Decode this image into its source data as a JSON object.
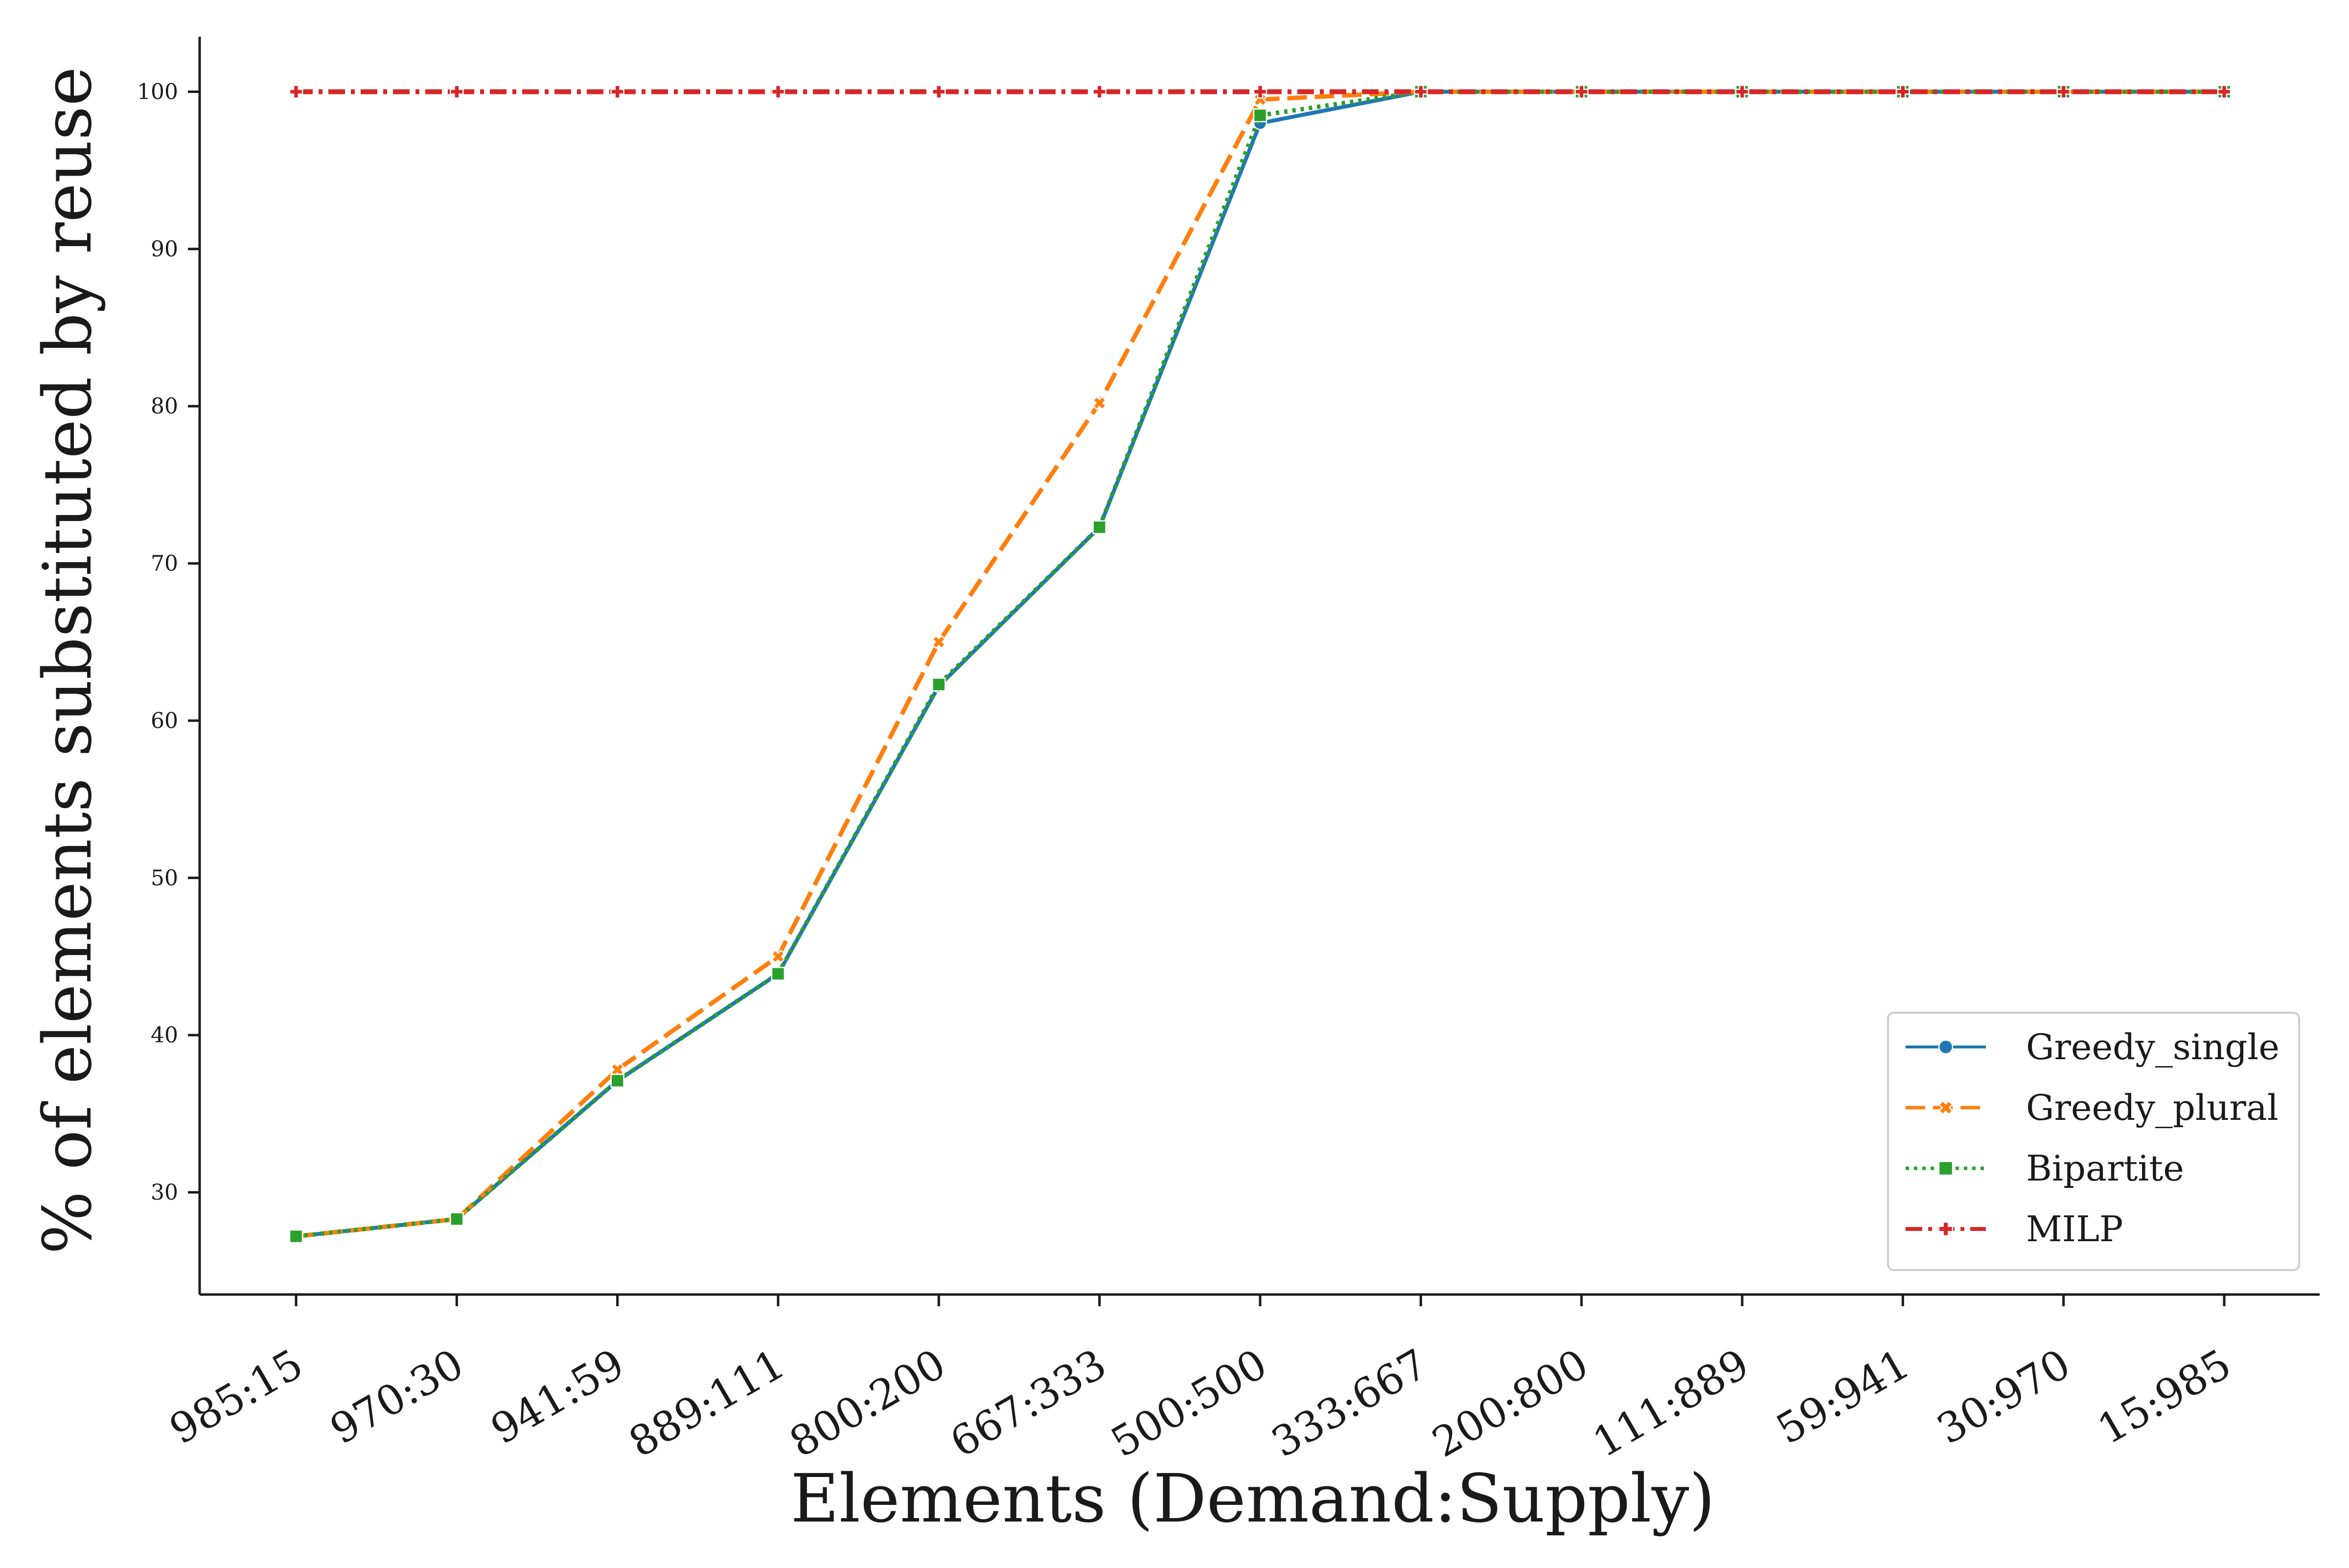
{
  "chart_data": {
    "type": "line",
    "xlabel": "Elements (Demand:Supply)",
    "ylabel": "% of elements substituted by reuse",
    "categories": [
      "985:15",
      "970:30",
      "941:59",
      "889:111",
      "800:200",
      "667:333",
      "500:500",
      "333:667",
      "200:800",
      "111:889",
      "59:941",
      "30:970",
      "15:985"
    ],
    "ylim": [
      23.5,
      103.5
    ],
    "yticks": [
      30,
      40,
      50,
      60,
      70,
      80,
      90,
      100
    ],
    "grid": false,
    "legend_position": "lower-right",
    "series": [
      {
        "name": "Greedy_single",
        "color": "#1f77b4",
        "dash": "solid",
        "marker": "circle",
        "values": [
          27.2,
          28.3,
          37.1,
          43.9,
          62.2,
          72.3,
          98.0,
          100,
          100,
          100,
          100,
          100,
          100
        ]
      },
      {
        "name": "Greedy_plural",
        "color": "#ff7f0e",
        "dash": "dashed",
        "marker": "x-filled",
        "values": [
          27.2,
          28.3,
          37.8,
          45.0,
          65.0,
          80.2,
          99.5,
          100,
          100,
          100,
          100,
          100,
          100
        ]
      },
      {
        "name": "Bipartite",
        "color": "#2ca02c",
        "dash": "dotted",
        "marker": "square",
        "values": [
          27.2,
          28.3,
          37.1,
          43.9,
          62.3,
          72.3,
          98.5,
          100,
          100,
          100,
          100,
          100,
          100
        ]
      },
      {
        "name": "MILP",
        "color": "#d62728",
        "dash": "dashdot",
        "marker": "plus-filled",
        "values": [
          100,
          100,
          100,
          100,
          100,
          100,
          100,
          100,
          100,
          100,
          100,
          100,
          100
        ]
      }
    ]
  }
}
